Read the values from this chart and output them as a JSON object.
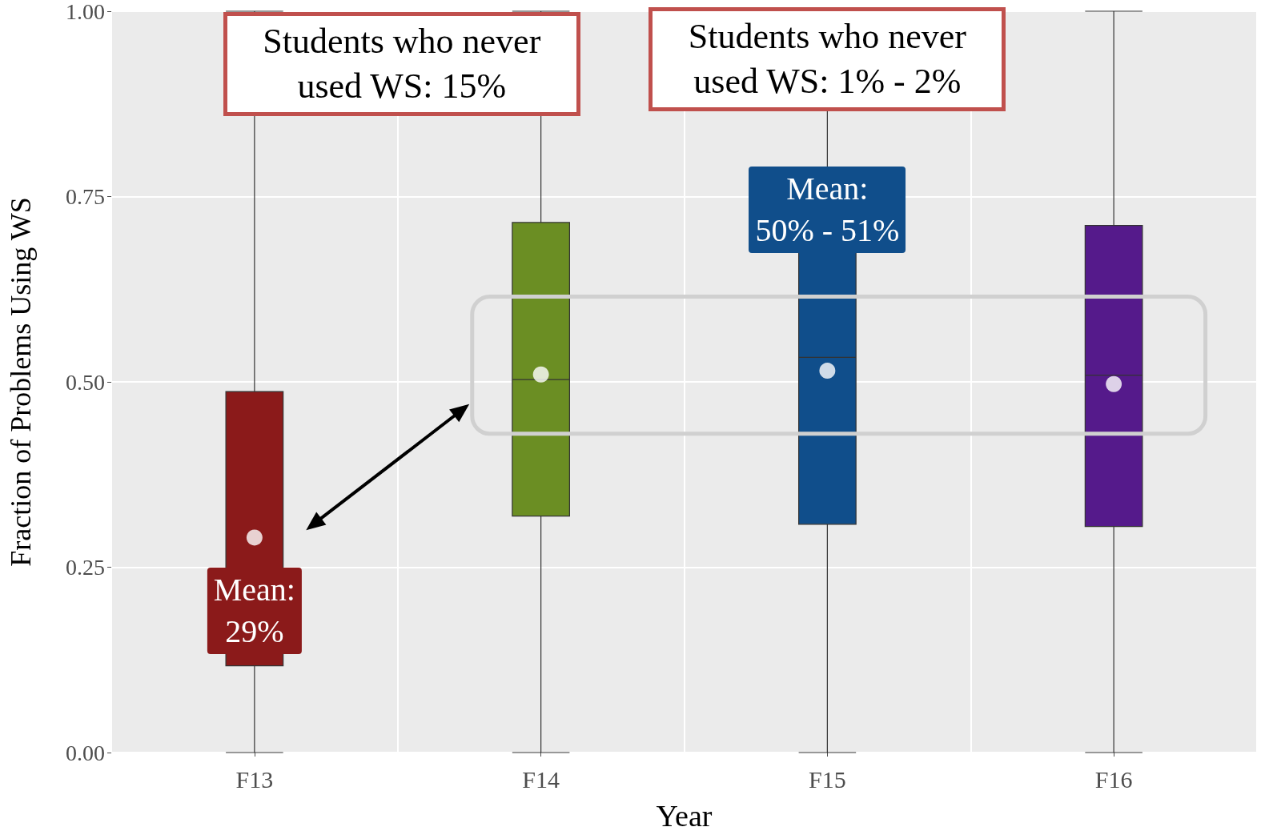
{
  "chart_data": {
    "type": "box",
    "xlabel": "Year",
    "ylabel": "Fraction of Problems Using WS",
    "categories": [
      "F13",
      "F14",
      "F15",
      "F16"
    ],
    "colors": [
      "#8b1a1a",
      "#6b8e23",
      "#104e8b",
      "#551a8b"
    ],
    "boxes": [
      {
        "low": 0,
        "q1": 0.117,
        "median": 0.243,
        "q3": 0.487,
        "high": 1,
        "mean": 0.29
      },
      {
        "low": 0,
        "q1": 0.319,
        "median": 0.503,
        "q3": 0.715,
        "high": 1,
        "mean": 0.51
      },
      {
        "low": 0,
        "q1": 0.308,
        "median": 0.533,
        "q3": 0.725,
        "high": 1,
        "mean": 0.515
      },
      {
        "low": 0,
        "q1": 0.305,
        "median": 0.509,
        "q3": 0.711,
        "high": 1,
        "mean": 0.497
      }
    ],
    "ylim": [
      0,
      1
    ],
    "yticks": [
      {
        "value": 0,
        "label": "0.00"
      },
      {
        "value": 0.25,
        "label": "0.25"
      },
      {
        "value": 0.5,
        "label": "0.50"
      },
      {
        "value": 0.75,
        "label": "0.75"
      },
      {
        "value": 1,
        "label": "1.00"
      }
    ],
    "grid": true,
    "annotations": [
      "Students who never used WS: 15%",
      "Students who never used WS: 1% - 2%",
      "Mean: 29%",
      "Mean: 50% - 51%"
    ]
  }
}
